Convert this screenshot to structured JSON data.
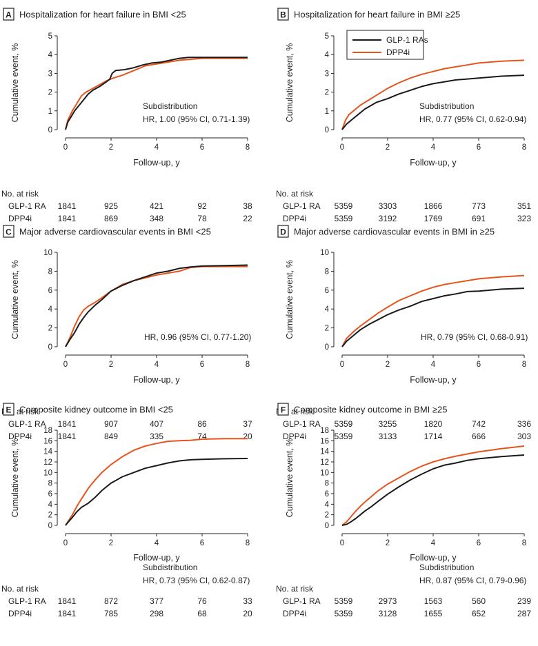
{
  "colors": {
    "glp": "#1a1a1a",
    "dpp": "#e5541c",
    "axis": "#231f20"
  },
  "legend": {
    "glp_label": "GLP-1 RAs",
    "dpp_label": "DPP4i"
  },
  "chart_data": [
    {
      "panel": "A",
      "type": "line",
      "title": "Hospitalization for heart failure in BMI <25",
      "xlabel": "Follow-up, y",
      "ylabel": "Cumulative event, %",
      "xlim": [
        0,
        8
      ],
      "ylim": [
        0,
        5
      ],
      "xticks": [
        0,
        2,
        4,
        6,
        8
      ],
      "yticks": [
        0,
        1,
        2,
        3,
        4,
        5
      ],
      "annotation_lines": [
        "Subdistribution",
        "HR, 1.00 (95% CI, 0.71-1.39)"
      ],
      "series": [
        {
          "name": "GLP-1 RAs",
          "x": [
            0,
            0.1,
            0.25,
            0.4,
            0.6,
            0.8,
            1.0,
            1.2,
            1.5,
            1.8,
            1.95,
            2.05,
            2.2,
            2.6,
            3.0,
            3.4,
            3.8,
            4.2,
            4.6,
            5.0,
            5.4,
            6.0,
            7.0,
            8.0
          ],
          "y": [
            0,
            0.4,
            0.7,
            1.0,
            1.3,
            1.6,
            1.9,
            2.1,
            2.3,
            2.55,
            2.7,
            3.0,
            3.15,
            3.2,
            3.3,
            3.45,
            3.55,
            3.6,
            3.7,
            3.8,
            3.85,
            3.85,
            3.85,
            3.85
          ]
        },
        {
          "name": "DPP4i",
          "x": [
            0,
            0.1,
            0.3,
            0.5,
            0.7,
            0.9,
            1.2,
            1.5,
            1.8,
            2.1,
            2.5,
            3.0,
            3.5,
            4.0,
            4.5,
            5.0,
            5.5,
            6.0,
            7.0,
            8.0
          ],
          "y": [
            0,
            0.5,
            1.0,
            1.4,
            1.8,
            2.0,
            2.2,
            2.4,
            2.6,
            2.75,
            2.9,
            3.15,
            3.4,
            3.5,
            3.6,
            3.7,
            3.75,
            3.8,
            3.8,
            3.8
          ]
        }
      ],
      "risk_table": {
        "heading": "No. at risk",
        "rows": [
          {
            "label": "GLP-1 RA",
            "values": [
              "1841",
              "925",
              "421",
              "92",
              "38"
            ]
          },
          {
            "label": "DPP4i",
            "values": [
              "1841",
              "869",
              "348",
              "78",
              "22"
            ]
          }
        ]
      }
    },
    {
      "panel": "B",
      "type": "line",
      "title": "Hospitalization for heart failure in BMI ≥25",
      "xlabel": "Follow-up, y",
      "ylabel": "Cumulative event, %",
      "xlim": [
        0,
        8
      ],
      "ylim": [
        0,
        5
      ],
      "xticks": [
        0,
        2,
        4,
        6,
        8
      ],
      "yticks": [
        0,
        1,
        2,
        3,
        4,
        5
      ],
      "annotation_lines": [
        "Subdistribution",
        "HR, 0.77 (95% CI, 0.62-0.94)"
      ],
      "series": [
        {
          "name": "GLP-1 RAs",
          "x": [
            0,
            0.2,
            0.4,
            0.7,
            1.0,
            1.5,
            2.0,
            2.5,
            3.0,
            3.5,
            4.0,
            4.5,
            5.0,
            5.5,
            6.0,
            7.0,
            8.0
          ],
          "y": [
            0,
            0.3,
            0.5,
            0.8,
            1.1,
            1.45,
            1.65,
            1.9,
            2.1,
            2.3,
            2.45,
            2.55,
            2.65,
            2.7,
            2.75,
            2.85,
            2.9
          ]
        },
        {
          "name": "DPP4i",
          "x": [
            0,
            0.15,
            0.3,
            0.5,
            0.8,
            1.2,
            1.6,
            2.0,
            2.5,
            3.0,
            3.5,
            4.0,
            4.5,
            5.0,
            5.5,
            6.0,
            7.0,
            8.0
          ],
          "y": [
            0,
            0.5,
            0.8,
            1.0,
            1.3,
            1.6,
            1.9,
            2.2,
            2.5,
            2.75,
            2.95,
            3.1,
            3.25,
            3.35,
            3.45,
            3.55,
            3.65,
            3.7
          ]
        }
      ],
      "risk_table": {
        "heading": "No. at risk",
        "rows": [
          {
            "label": "GLP-1 RA",
            "values": [
              "5359",
              "3303",
              "1866",
              "773",
              "351"
            ]
          },
          {
            "label": "DPP4i",
            "values": [
              "5359",
              "3192",
              "1769",
              "691",
              "323"
            ]
          }
        ]
      }
    },
    {
      "panel": "C",
      "type": "line",
      "title": "Major adverse cardiovascular events in BMI <25",
      "xlabel": "Follow-up, y",
      "ylabel": "Cumulative event, %",
      "xlim": [
        0,
        8
      ],
      "ylim": [
        0,
        10
      ],
      "xticks": [
        0,
        2,
        4,
        6,
        8
      ],
      "yticks": [
        0,
        2,
        4,
        6,
        8,
        10
      ],
      "annotation_lines": [
        "HR, 0.96 (95% CI, 0.77-1.20)"
      ],
      "series": [
        {
          "name": "GLP-1 RAs",
          "x": [
            0,
            0.2,
            0.4,
            0.6,
            0.8,
            1.0,
            1.3,
            1.6,
            2.0,
            2.5,
            3.0,
            3.5,
            4.0,
            4.5,
            5.0,
            5.5,
            6.0,
            7.0,
            8.0
          ],
          "y": [
            0,
            0.8,
            1.5,
            2.4,
            3.1,
            3.7,
            4.4,
            5.0,
            5.9,
            6.5,
            7.0,
            7.4,
            7.8,
            8.0,
            8.3,
            8.45,
            8.55,
            8.6,
            8.65
          ]
        },
        {
          "name": "DPP4i",
          "x": [
            0,
            0.2,
            0.4,
            0.6,
            0.8,
            1.0,
            1.3,
            1.6,
            2.0,
            2.5,
            3.0,
            3.5,
            4.0,
            4.5,
            5.0,
            5.5,
            6.0,
            7.0,
            8.0
          ],
          "y": [
            0,
            1.0,
            2.2,
            3.2,
            3.9,
            4.3,
            4.7,
            5.2,
            5.9,
            6.6,
            7.0,
            7.3,
            7.6,
            7.8,
            8.0,
            8.4,
            8.5,
            8.5,
            8.5
          ]
        }
      ],
      "risk_table": {
        "heading": "No. at risk",
        "rows": [
          {
            "label": "GLP-1 RA",
            "values": [
              "1841",
              "907",
              "407",
              "86",
              "37"
            ]
          },
          {
            "label": "DPP4i",
            "values": [
              "1841",
              "849",
              "335",
              "74",
              "20"
            ]
          }
        ]
      }
    },
    {
      "panel": "D",
      "type": "line",
      "title": "Major adverse cardiovascular events in BMI in ≥25",
      "xlabel": "Follow-up, y",
      "ylabel": "Cumulative event, %",
      "xlim": [
        0,
        8
      ],
      "ylim": [
        0,
        10
      ],
      "xticks": [
        0,
        2,
        4,
        6,
        8
      ],
      "yticks": [
        0,
        2,
        4,
        6,
        8,
        10
      ],
      "annotation_lines": [
        "HR, 0.79 (95% CI, 0.68-0.91)"
      ],
      "series": [
        {
          "name": "GLP-1 RAs",
          "x": [
            0,
            0.2,
            0.5,
            0.8,
            1.2,
            1.6,
            2.0,
            2.5,
            3.0,
            3.5,
            4.0,
            4.5,
            5.0,
            5.5,
            6.0,
            7.0,
            8.0
          ],
          "y": [
            0,
            0.6,
            1.2,
            1.8,
            2.4,
            2.9,
            3.4,
            3.9,
            4.3,
            4.8,
            5.1,
            5.4,
            5.6,
            5.85,
            5.9,
            6.1,
            6.2
          ]
        },
        {
          "name": "DPP4i",
          "x": [
            0,
            0.2,
            0.5,
            0.8,
            1.2,
            1.6,
            2.0,
            2.5,
            3.0,
            3.5,
            4.0,
            4.5,
            5.0,
            5.5,
            6.0,
            7.0,
            8.0
          ],
          "y": [
            0,
            0.9,
            1.6,
            2.2,
            2.9,
            3.6,
            4.2,
            4.9,
            5.4,
            5.9,
            6.3,
            6.6,
            6.8,
            7.0,
            7.2,
            7.4,
            7.55
          ]
        }
      ],
      "risk_table": {
        "heading": "No. at risk",
        "rows": [
          {
            "label": "GLP-1 RA",
            "values": [
              "5359",
              "3255",
              "1820",
              "742",
              "336"
            ]
          },
          {
            "label": "DPP4i",
            "values": [
              "5359",
              "3133",
              "1714",
              "666",
              "303"
            ]
          }
        ]
      }
    },
    {
      "panel": "E",
      "type": "line",
      "title": "Composite kidney outcome in BMI <25",
      "xlabel": "Follow-up, y",
      "ylabel": "Cumulative event, %",
      "xlim": [
        0,
        8
      ],
      "ylim": [
        0,
        18
      ],
      "xticks": [
        0,
        2,
        4,
        6,
        8
      ],
      "yticks": [
        0,
        2,
        4,
        6,
        8,
        10,
        12,
        14,
        16,
        18
      ],
      "annotation_lines": [
        "Subdistribution",
        "HR, 0.73 (95% CI, 0.62-0.87)"
      ],
      "series": [
        {
          "name": "GLP-1 RAs",
          "x": [
            0,
            0.15,
            0.3,
            0.5,
            0.7,
            1.0,
            1.3,
            1.6,
            2.0,
            2.5,
            3.0,
            3.5,
            4.0,
            4.5,
            5.0,
            5.5,
            6.0,
            7.0,
            8.0
          ],
          "y": [
            0,
            0.8,
            1.5,
            2.6,
            3.4,
            4.2,
            5.3,
            6.6,
            8.0,
            9.2,
            10.0,
            10.8,
            11.3,
            11.8,
            12.2,
            12.4,
            12.5,
            12.6,
            12.65
          ]
        },
        {
          "name": "DPP4i",
          "x": [
            0,
            0.15,
            0.3,
            0.5,
            0.7,
            1.0,
            1.3,
            1.6,
            2.0,
            2.5,
            3.0,
            3.5,
            4.0,
            4.5,
            5.0,
            5.5,
            6.0,
            7.0,
            8.0
          ],
          "y": [
            0,
            1.0,
            2.0,
            3.6,
            5.0,
            7.0,
            8.6,
            10.0,
            11.5,
            13.0,
            14.2,
            15.0,
            15.5,
            15.9,
            16.0,
            16.1,
            16.3,
            16.4,
            16.4
          ]
        }
      ],
      "risk_table": {
        "heading": "No. at risk",
        "rows": [
          {
            "label": "GLP-1 RA",
            "values": [
              "1841",
              "872",
              "377",
              "76",
              "33"
            ]
          },
          {
            "label": "DPP4i",
            "values": [
              "1841",
              "785",
              "298",
              "68",
              "20"
            ]
          }
        ]
      }
    },
    {
      "panel": "F",
      "type": "line",
      "title": "Composite kidney outcome in BMI ≥25",
      "xlabel": "Follow-up, y",
      "ylabel": "Cumulative event, %",
      "xlim": [
        0,
        8
      ],
      "ylim": [
        0,
        18
      ],
      "xticks": [
        0,
        2,
        4,
        6,
        8
      ],
      "yticks": [
        0,
        2,
        4,
        6,
        8,
        10,
        12,
        14,
        16,
        18
      ],
      "annotation_lines": [
        "Subdistribution",
        "HR, 0.87 (95% CI, 0.79-0.96)"
      ],
      "series": [
        {
          "name": "GLP-1 RAs",
          "x": [
            0,
            0.2,
            0.4,
            0.6,
            0.8,
            1.0,
            1.3,
            1.6,
            2.0,
            2.5,
            3.0,
            3.5,
            4.0,
            4.5,
            5.0,
            5.5,
            6.0,
            7.0,
            8.0
          ],
          "y": [
            0,
            0.2,
            0.7,
            1.3,
            2.0,
            2.7,
            3.6,
            4.6,
            5.9,
            7.3,
            8.6,
            9.7,
            10.7,
            11.4,
            11.8,
            12.3,
            12.6,
            13.0,
            13.3
          ]
        },
        {
          "name": "DPP4i",
          "x": [
            0,
            0.2,
            0.4,
            0.6,
            0.8,
            1.0,
            1.3,
            1.6,
            2.0,
            2.5,
            3.0,
            3.5,
            4.0,
            4.5,
            5.0,
            5.5,
            6.0,
            7.0,
            8.0
          ],
          "y": [
            0,
            0.7,
            1.7,
            2.7,
            3.6,
            4.4,
            5.5,
            6.6,
            7.8,
            9.0,
            10.2,
            11.2,
            12.0,
            12.6,
            13.1,
            13.5,
            13.9,
            14.5,
            15.0
          ]
        }
      ],
      "risk_table": {
        "heading": "No. at risk",
        "rows": [
          {
            "label": "GLP-1 RA",
            "values": [
              "5359",
              "2973",
              "1563",
              "560",
              "239"
            ]
          },
          {
            "label": "DPP4i",
            "values": [
              "5359",
              "3128",
              "1655",
              "652",
              "287"
            ]
          }
        ]
      }
    }
  ]
}
